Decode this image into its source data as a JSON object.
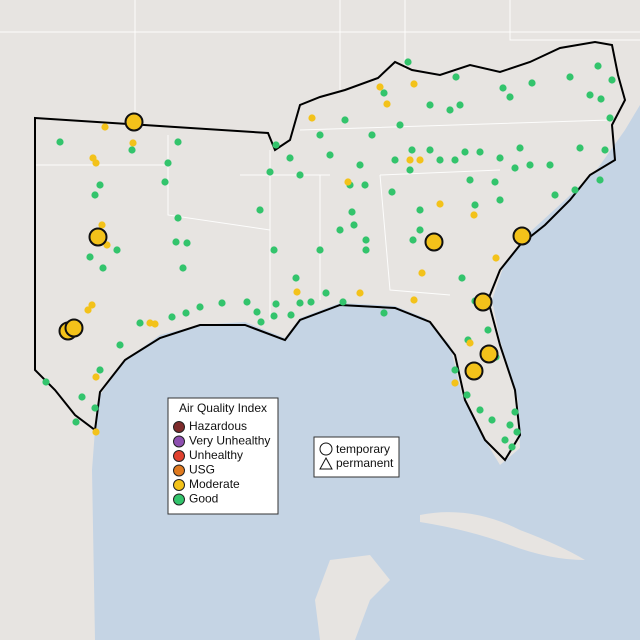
{
  "legend": {
    "title": "Air Quality Index",
    "items": [
      {
        "label": "Hazardous",
        "color": "#7e2b2b"
      },
      {
        "label": "Very Unhealthy",
        "color": "#8e4fb0"
      },
      {
        "label": "Unhealthy",
        "color": "#e0412f"
      },
      {
        "label": "USG",
        "color": "#e07a1f"
      },
      {
        "label": "Moderate",
        "color": "#f3c21a"
      },
      {
        "label": "Good",
        "color": "#33c46c"
      }
    ]
  },
  "shape_legend": {
    "items": [
      "temporary",
      "permanent"
    ]
  }
}
